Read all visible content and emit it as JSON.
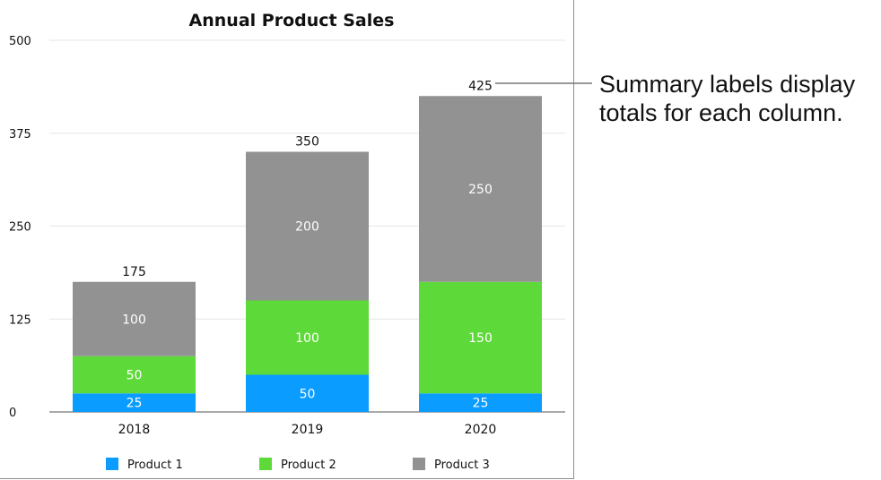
{
  "chart_data": {
    "type": "bar",
    "stacked": true,
    "title": "Annual Product Sales",
    "xlabel": "",
    "ylabel": "",
    "categories": [
      "2018",
      "2019",
      "2020"
    ],
    "series": [
      {
        "name": "Product 1",
        "values": [
          25,
          50,
          25
        ],
        "color": "#0a9cff"
      },
      {
        "name": "Product 2",
        "values": [
          50,
          100,
          150
        ],
        "color": "#5ed93a"
      },
      {
        "name": "Product 3",
        "values": [
          100,
          200,
          250
        ],
        "color": "#929292"
      }
    ],
    "totals": [
      175,
      350,
      425
    ],
    "ylim": [
      0,
      500
    ],
    "yticks": [
      0,
      125,
      250,
      375,
      500
    ],
    "grid": true,
    "legend": "bottom"
  },
  "annotation": {
    "line1": "Summary labels display",
    "line2": "totals for each column."
  }
}
